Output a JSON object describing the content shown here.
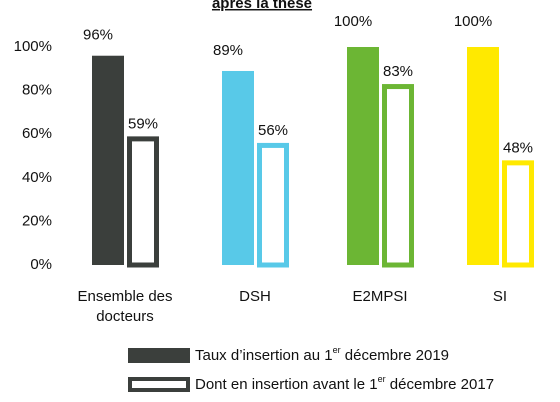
{
  "chart_data": {
    "type": "bar",
    "title": "après la thèse",
    "categories": [
      [
        "Ensemble des",
        "docteurs"
      ],
      "DSH",
      "E2MPSI",
      "SI"
    ],
    "series": [
      {
        "name": "Taux d’insertion au 1er décembre 2019",
        "color": "#3b3f3c",
        "fill": "solid",
        "colors": [
          "#3b3f3c",
          "#58c9e8",
          "#6cb634",
          "#ffe900"
        ],
        "values": [
          96,
          89,
          100,
          100
        ],
        "value_labels": [
          "96%",
          "89%",
          "100%",
          "100%"
        ]
      },
      {
        "name": "Dont en insertion avant le 1er décembre 2017",
        "color": "#3b3f3c",
        "fill": "outline",
        "colors": [
          "#3b3f3c",
          "#58c9e8",
          "#6cb634",
          "#ffe900"
        ],
        "values": [
          59,
          56,
          83,
          48
        ],
        "value_labels": [
          "59%",
          "56%",
          "83%",
          "48%"
        ]
      }
    ],
    "ylim": [
      0,
      100
    ],
    "yticks": [
      {
        "value": 0,
        "label": "0%"
      },
      {
        "value": 20,
        "label": "20%"
      },
      {
        "value": 40,
        "label": "40%"
      },
      {
        "value": 60,
        "label": "60%"
      },
      {
        "value": 80,
        "label": "80%"
      },
      {
        "value": 100,
        "label": "100%"
      }
    ],
    "grid": false
  }
}
